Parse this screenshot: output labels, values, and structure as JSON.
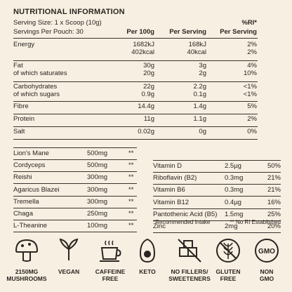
{
  "title": "NUTRITIONAL INFORMATION",
  "serving_size": "Serving Size: 1 x Scoop (10g)",
  "servings_per_pouch": "Servings Per Pouch: 30",
  "ri_header": "%RI*",
  "col_headers": [
    "Per 100g",
    "Per Serving",
    "Per Serving"
  ],
  "nutrition": [
    {
      "name": "Energy",
      "name2": "",
      "p100": "1682kJ",
      "p100b": "402kcal",
      "ps": "168kJ",
      "psb": "40kcal",
      "ri": "2%",
      "rib": "2%"
    },
    {
      "name": "Fat",
      "name2": "of which saturates",
      "p100": "30g",
      "p100b": "20g",
      "ps": "3g",
      "psb": "2g",
      "ri": "4%",
      "rib": "10%"
    },
    {
      "name": "Carbohydrates",
      "name2": "of which sugars",
      "p100": "22g",
      "p100b": "0.9g",
      "ps": "2.2g",
      "psb": "0.1g",
      "ri": "<1%",
      "rib": "<1%"
    },
    {
      "name": "Fibre",
      "name2": "",
      "p100": "14.4g",
      "p100b": "",
      "ps": "1.4g",
      "psb": "",
      "ri": "5%",
      "rib": ""
    },
    {
      "name": "Protein",
      "name2": "",
      "p100": "11g",
      "p100b": "",
      "ps": "1.1g",
      "psb": "",
      "ri": "2%",
      "rib": ""
    },
    {
      "name": "Salt",
      "name2": "",
      "p100": "0.02g",
      "p100b": "",
      "ps": "0g",
      "psb": "",
      "ri": "0%",
      "rib": ""
    }
  ],
  "ingredients": [
    {
      "name": "Lion's Mane",
      "amount": "500mg",
      "mark": "**"
    },
    {
      "name": "Cordyceps",
      "amount": "500mg",
      "mark": "**"
    },
    {
      "name": "Reishi",
      "amount": "300mg",
      "mark": "**"
    },
    {
      "name": "Agaricus Blazei",
      "amount": "300mg",
      "mark": "**"
    },
    {
      "name": "Tremella",
      "amount": "300mg",
      "mark": "**"
    },
    {
      "name": "Chaga",
      "amount": "250mg",
      "mark": "**"
    },
    {
      "name": "L-Theanine",
      "amount": "100mg",
      "mark": "**"
    }
  ],
  "vitamins": [
    {
      "name": "Vitamin D",
      "amount": "2.5µg",
      "ri": "50%"
    },
    {
      "name": "Riboflavin (B2)",
      "amount": "0.3mg",
      "ri": "21%"
    },
    {
      "name": "Vitamin B6",
      "amount": "0.3mg",
      "ri": "21%"
    },
    {
      "name": "Vitamin B12",
      "amount": "0.4µg",
      "ri": "16%"
    },
    {
      "name": "Pantothenic Acid (B5)",
      "amount": "1.5mg",
      "ri": "25%"
    },
    {
      "name": "Zinc",
      "amount": "2mg",
      "ri": "20%"
    }
  ],
  "footnote_ri": "*Recommended Intake",
  "footnote_nori": "** No RI Established",
  "badges": [
    {
      "icon": "mushroom-icon",
      "line1": "2150MG",
      "line2": "MUSHROOMS"
    },
    {
      "icon": "leaf-icon",
      "line1": "VEGAN",
      "line2": ""
    },
    {
      "icon": "coffee-cup-icon",
      "line1": "CAFFEINE",
      "line2": "FREE"
    },
    {
      "icon": "avocado-icon",
      "line1": "KETO",
      "line2": ""
    },
    {
      "icon": "sugar-cubes-icon",
      "line1": "NO FILLERS/",
      "line2": "SWEETENERS"
    },
    {
      "icon": "no-wheat-icon",
      "line1": "GLUTEN",
      "line2": "FREE"
    },
    {
      "icon": "gmo-icon",
      "line1": "NON",
      "line2": "GMO"
    }
  ],
  "colors": {
    "background": "#f7efe2",
    "text": "#2a2520"
  }
}
